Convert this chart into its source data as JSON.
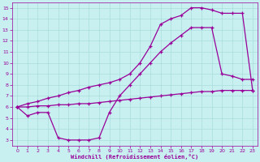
{
  "background_color": "#c8f0f0",
  "line_color": "#990099",
  "grid_color": "#aadddd",
  "xlabel": "Windchill (Refroidissement éolien,°C)",
  "xlabel_color": "#990099",
  "tick_color": "#990099",
  "xmin": 0,
  "xmax": 23,
  "ymin": 3,
  "ymax": 15,
  "line1_x": [
    0,
    1,
    2,
    3,
    4,
    5,
    6,
    7,
    8,
    9,
    10,
    11,
    12,
    13,
    14,
    15,
    16,
    17,
    18,
    19,
    20,
    21,
    22,
    23
  ],
  "line1_y": [
    6.0,
    6.3,
    6.5,
    6.8,
    7.0,
    7.3,
    7.5,
    7.8,
    8.0,
    8.2,
    8.5,
    9.0,
    10.0,
    11.5,
    13.5,
    14.0,
    14.3,
    15.0,
    15.0,
    14.8,
    14.5,
    14.5,
    14.5,
    7.5
  ],
  "line2_x": [
    0,
    1,
    2,
    3,
    4,
    5,
    6,
    7,
    8,
    9,
    10,
    11,
    12,
    13,
    14,
    15,
    16,
    17,
    18,
    19,
    20,
    21,
    22,
    23
  ],
  "line2_y": [
    6.0,
    5.2,
    5.5,
    5.5,
    3.2,
    3.0,
    3.0,
    3.0,
    3.2,
    5.5,
    7.0,
    8.0,
    9.0,
    10.0,
    11.0,
    11.8,
    12.5,
    13.2,
    13.2,
    13.2,
    9.0,
    8.8,
    8.5,
    8.5
  ],
  "line3_x": [
    0,
    1,
    2,
    3,
    4,
    5,
    6,
    7,
    8,
    9,
    10,
    11,
    12,
    13,
    14,
    15,
    16,
    17,
    18,
    19,
    20,
    21,
    22,
    23
  ],
  "line3_y": [
    6.0,
    6.0,
    6.1,
    6.1,
    6.2,
    6.2,
    6.3,
    6.3,
    6.4,
    6.5,
    6.6,
    6.7,
    6.8,
    6.9,
    7.0,
    7.1,
    7.2,
    7.3,
    7.4,
    7.4,
    7.5,
    7.5,
    7.5,
    7.5
  ]
}
